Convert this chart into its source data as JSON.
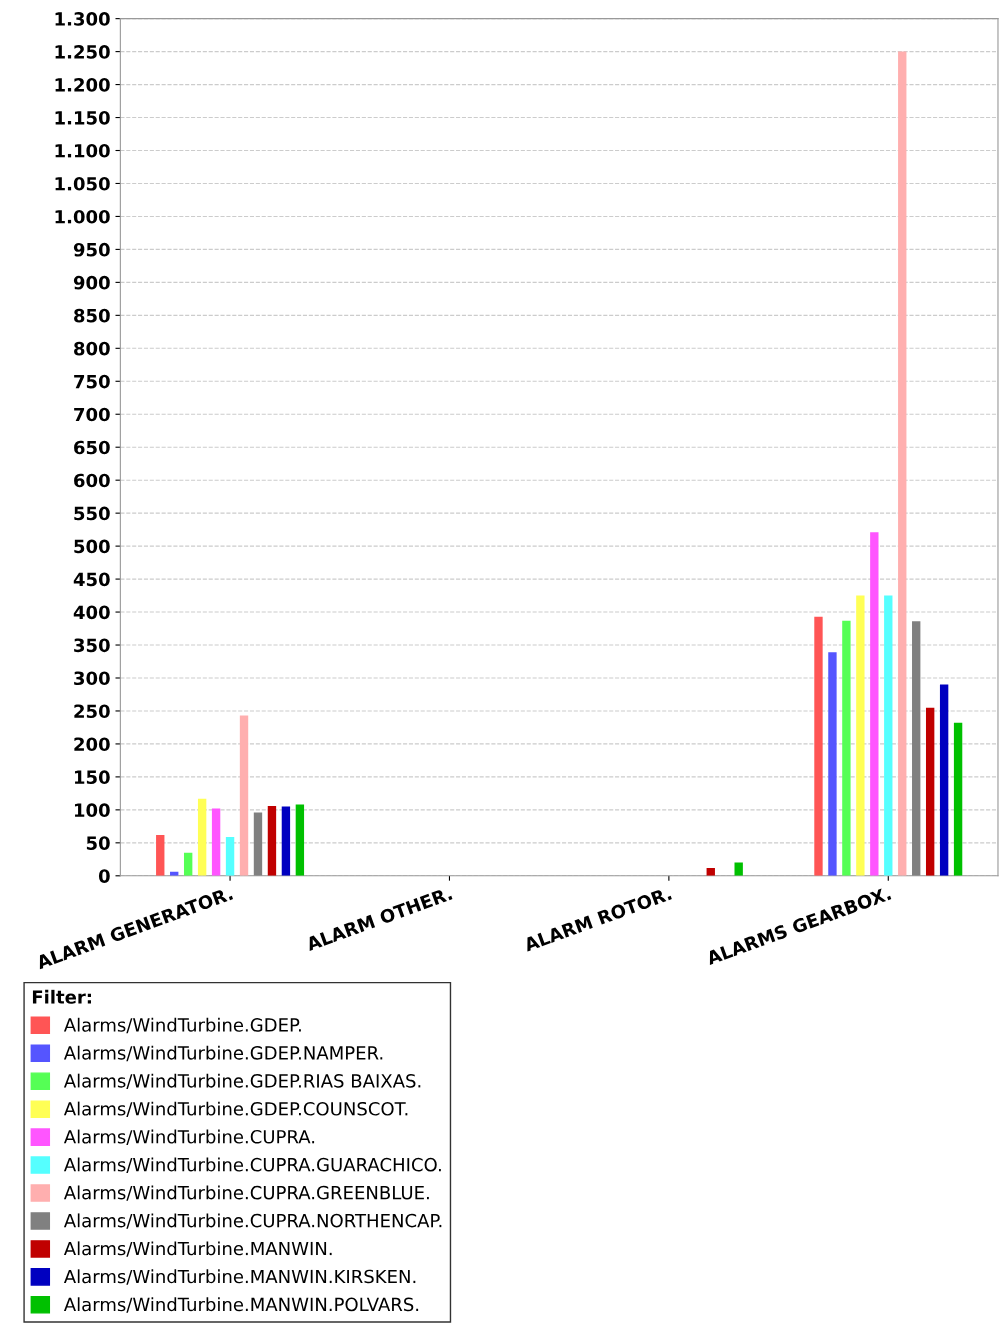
{
  "chart_data": {
    "type": "bar",
    "categories": [
      "ALARM GENERATOR.",
      "ALARM OTHER.",
      "ALARM ROTOR.",
      "ALARMS GEARBOX."
    ],
    "series": [
      {
        "name": "Alarms/WindTurbine.GDEP.",
        "color": "#ff5555",
        "values": [
          62,
          0,
          0,
          393
        ]
      },
      {
        "name": "Alarms/WindTurbine.GDEP.NAMPER.",
        "color": "#5555ff",
        "values": [
          6,
          0,
          0,
          339
        ]
      },
      {
        "name": "Alarms/WindTurbine.GDEP.RIAS BAIXAS.",
        "color": "#55ff55",
        "values": [
          35,
          0,
          0,
          387
        ]
      },
      {
        "name": "Alarms/WindTurbine.GDEP.COUNSCOT.",
        "color": "#ffff55",
        "values": [
          117,
          0,
          0,
          425
        ]
      },
      {
        "name": "Alarms/WindTurbine.CUPRA.",
        "color": "#ff55ff",
        "values": [
          102,
          0,
          0,
          521
        ]
      },
      {
        "name": "Alarms/WindTurbine.CUPRA.GUARACHICO.",
        "color": "#55ffff",
        "values": [
          59,
          0,
          0,
          425
        ]
      },
      {
        "name": "Alarms/WindTurbine.CUPRA.GREENBLUE.",
        "color": "#ffafaf",
        "values": [
          243,
          0,
          0,
          1250
        ]
      },
      {
        "name": "Alarms/WindTurbine.CUPRA.NORTHENCAP.",
        "color": "#808080",
        "values": [
          96,
          0,
          0,
          386
        ]
      },
      {
        "name": "Alarms/WindTurbine.MANWIN.",
        "color": "#c00000",
        "values": [
          106,
          0,
          12,
          255
        ]
      },
      {
        "name": "Alarms/WindTurbine.MANWIN.KIRSKEN.",
        "color": "#0000c0",
        "values": [
          105,
          0,
          0,
          290
        ]
      },
      {
        "name": "Alarms/WindTurbine.MANWIN.POLVARS.",
        "color": "#00c000",
        "values": [
          108,
          0,
          20,
          232
        ]
      }
    ],
    "ylim": [
      0,
      1300
    ],
    "yticks": [
      0,
      50,
      100,
      150,
      200,
      250,
      300,
      350,
      400,
      450,
      500,
      550,
      600,
      650,
      700,
      750,
      800,
      850,
      900,
      950,
      {
        "value": 1000,
        "label": "1.000"
      },
      {
        "value": 1050,
        "label": "1.050"
      },
      {
        "value": 1100,
        "label": "1.100"
      },
      {
        "value": 1150,
        "label": "1.150"
      },
      {
        "value": 1200,
        "label": "1.200"
      },
      {
        "value": 1250,
        "label": "1.250"
      },
      {
        "value": 1300,
        "label": "1.300"
      }
    ],
    "grid": "y",
    "legend": "bottom",
    "legend_title": "Filter:"
  }
}
